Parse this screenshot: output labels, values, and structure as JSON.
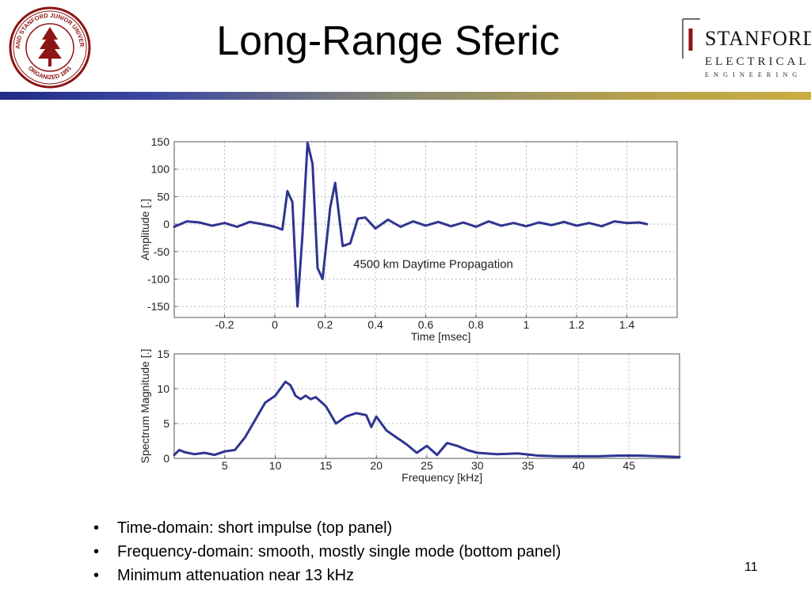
{
  "slide": {
    "title": "Long-Range Sferic",
    "page_number": "11",
    "bullets": [
      "Time-domain: short impulse (top panel)",
      "Frequency-domain: smooth, mostly single mode (bottom panel)",
      "Minimum attenuation near 13 kHz"
    ]
  },
  "seal": {
    "ring_text_top": "LELAND STANFORD JUNIOR UNIVERSITY",
    "ring_text_bottom": "ORGANIZED 1891",
    "color": "#8c1515"
  },
  "logo": {
    "name": "STANFORD",
    "dept": "ELECTRICAL",
    "sub": "ENGINEERING",
    "color": "#8c1515"
  },
  "colors": {
    "line": "#2e3590",
    "rule_left": "#1f2a8a",
    "rule_right": "#c9ad44"
  },
  "chart_data": [
    {
      "type": "line",
      "xlabel": "Time [msec]",
      "ylabel": "Amplitude [.]",
      "xlim": [
        -0.4,
        1.6
      ],
      "ylim": [
        -170,
        150
      ],
      "xticks": [
        -0.2,
        0,
        0.2,
        0.4,
        0.6,
        0.8,
        1,
        1.2,
        1.4
      ],
      "xtick_labels": [
        "-0.2",
        "0",
        "0.2",
        "0.4",
        "0.6",
        "0.8",
        "1",
        "1.2",
        "1.4"
      ],
      "yticks": [
        150,
        100,
        50,
        0,
        -50,
        -100,
        -150
      ],
      "ytick_labels": [
        "150",
        "100",
        "50",
        "0",
        "-50",
        "-100",
        "-150"
      ],
      "grid": true,
      "annotation": "4500 km Daytime Propagation",
      "x": [
        -0.4,
        -0.35,
        -0.3,
        -0.25,
        -0.2,
        -0.15,
        -0.1,
        -0.05,
        0,
        0.03,
        0.05,
        0.07,
        0.09,
        0.11,
        0.13,
        0.15,
        0.17,
        0.19,
        0.22,
        0.24,
        0.27,
        0.3,
        0.33,
        0.36,
        0.4,
        0.45,
        0.5,
        0.55,
        0.6,
        0.65,
        0.7,
        0.75,
        0.8,
        0.85,
        0.9,
        0.95,
        1.0,
        1.05,
        1.1,
        1.15,
        1.2,
        1.25,
        1.3,
        1.35,
        1.4,
        1.45,
        1.48
      ],
      "y": [
        -5,
        5,
        3,
        -3,
        2,
        -5,
        4,
        0,
        -5,
        -10,
        60,
        40,
        -150,
        -20,
        148,
        110,
        -80,
        -100,
        30,
        75,
        -40,
        -35,
        10,
        12,
        -8,
        8,
        -5,
        5,
        -3,
        4,
        -4,
        3,
        -5,
        5,
        -3,
        2,
        -4,
        3,
        -2,
        4,
        -3,
        2,
        -4,
        5,
        2,
        3,
        0
      ],
      "series": [
        {
          "values": "time-domain sferic waveform"
        }
      ]
    },
    {
      "type": "line",
      "xlabel": "Frequency [kHz]",
      "ylabel": "Spectrum Magnitude [.]",
      "xlim": [
        0,
        50
      ],
      "ylim": [
        0,
        15
      ],
      "xticks": [
        5,
        10,
        15,
        20,
        25,
        30,
        35,
        40,
        45
      ],
      "xtick_labels": [
        "5",
        "10",
        "15",
        "20",
        "25",
        "30",
        "35",
        "40",
        "45"
      ],
      "yticks": [
        15,
        10,
        5,
        0
      ],
      "ytick_labels": [
        "15",
        "10",
        "5",
        "0"
      ],
      "grid": true,
      "x": [
        0,
        0.5,
        1,
        2,
        3,
        4,
        5,
        6,
        7,
        8,
        9,
        10,
        11,
        11.5,
        12,
        12.5,
        13,
        13.5,
        14,
        15,
        16,
        17,
        18,
        19,
        19.5,
        20,
        21,
        22,
        23,
        24,
        25,
        26,
        27,
        28,
        29,
        30,
        32,
        34,
        36,
        38,
        40,
        42,
        44,
        46,
        48,
        50
      ],
      "y": [
        0.5,
        1.2,
        0.9,
        0.6,
        0.8,
        0.5,
        1.0,
        1.2,
        3.0,
        5.5,
        8.0,
        9.0,
        11.0,
        10.5,
        9.0,
        8.5,
        9.0,
        8.5,
        8.8,
        7.5,
        5.0,
        6.0,
        6.5,
        6.2,
        4.5,
        6.0,
        4.0,
        3.0,
        2.0,
        0.8,
        1.8,
        0.5,
        2.2,
        1.8,
        1.2,
        0.8,
        0.6,
        0.7,
        0.4,
        0.3,
        0.3,
        0.3,
        0.4,
        0.4,
        0.3,
        0.2
      ],
      "series": [
        {
          "values": "spectrum magnitude"
        }
      ]
    }
  ]
}
